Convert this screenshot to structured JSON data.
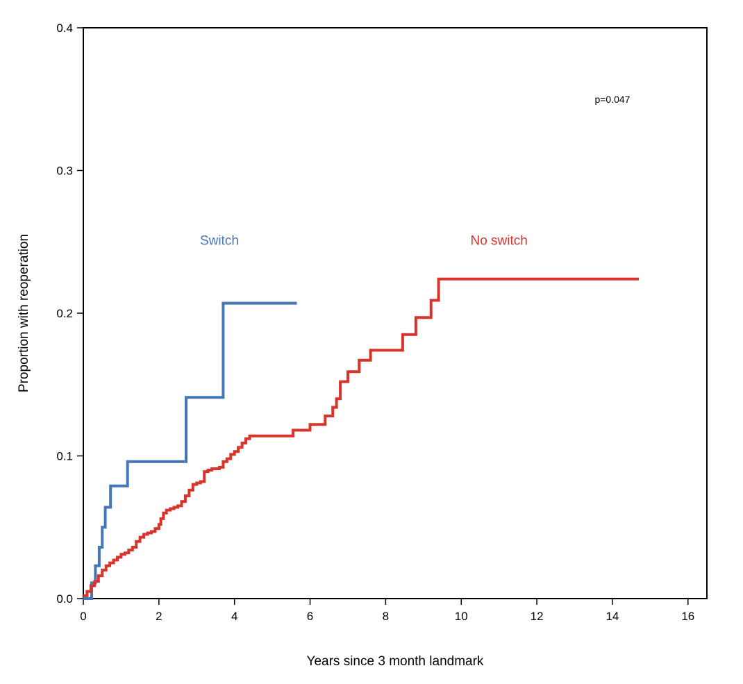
{
  "chart_data": {
    "type": "line",
    "step": true,
    "title": "",
    "xlabel": "Years since 3 month landmark",
    "ylabel": "Proportion with reoperation",
    "xlim": [
      0,
      16.5
    ],
    "ylim": [
      0,
      0.4
    ],
    "xticks": [
      0,
      2,
      4,
      6,
      8,
      10,
      12,
      14,
      16
    ],
    "yticks": [
      0.0,
      0.1,
      0.2,
      0.3,
      0.4
    ],
    "xtick_labels": [
      "0",
      "2",
      "4",
      "6",
      "8",
      "10",
      "12",
      "14",
      "16"
    ],
    "ytick_labels": [
      "0.0",
      "0.1",
      "0.2",
      "0.3",
      "0.4"
    ],
    "grid": false,
    "annotations": [
      {
        "text": "p=0.047",
        "x": 14.0,
        "y": 0.35
      }
    ],
    "series": [
      {
        "name": "Switch",
        "color": "#4477b4",
        "label_at": {
          "x": 3.6,
          "y": 0.248
        },
        "x": [
          0,
          0.22,
          0.22,
          0.32,
          0.32,
          0.42,
          0.42,
          0.5,
          0.5,
          0.58,
          0.58,
          0.62,
          0.62,
          0.72,
          0.72,
          1.17,
          1.17,
          2.72,
          2.72,
          3.7,
          3.7,
          5.65
        ],
        "y": [
          0,
          0,
          0.011,
          0.011,
          0.023,
          0.023,
          0.036,
          0.036,
          0.05,
          0.05,
          0.064,
          0.064,
          0.064,
          0.064,
          0.079,
          0.079,
          0.096,
          0.096,
          0.141,
          0.141,
          0.207,
          0.207
        ]
      },
      {
        "name": "No switch",
        "color": "#d9342c",
        "label_at": {
          "x": 11.0,
          "y": 0.248
        },
        "x": [
          0,
          0.1,
          0.2,
          0.3,
          0.4,
          0.5,
          0.6,
          0.7,
          0.8,
          0.9,
          1.0,
          1.1,
          1.2,
          1.3,
          1.4,
          1.5,
          1.6,
          1.7,
          1.8,
          1.9,
          2.0,
          2.05,
          2.12,
          2.2,
          2.3,
          2.4,
          2.5,
          2.6,
          2.7,
          2.8,
          2.9,
          3.0,
          3.1,
          3.2,
          3.3,
          3.4,
          3.5,
          3.6,
          3.7,
          3.8,
          3.9,
          4.0,
          4.1,
          4.2,
          4.3,
          4.4,
          5.0,
          5.55,
          6.0,
          6.4,
          6.6,
          6.7,
          6.8,
          7.0,
          7.3,
          7.6,
          8.3,
          8.45,
          8.8,
          9.2,
          9.4,
          10.0,
          14.7
        ],
        "y": [
          0.002,
          0.005,
          0.009,
          0.012,
          0.016,
          0.02,
          0.023,
          0.025,
          0.027,
          0.029,
          0.031,
          0.032,
          0.034,
          0.036,
          0.04,
          0.043,
          0.045,
          0.046,
          0.047,
          0.049,
          0.052,
          0.056,
          0.06,
          0.062,
          0.063,
          0.064,
          0.065,
          0.068,
          0.072,
          0.076,
          0.08,
          0.081,
          0.082,
          0.089,
          0.09,
          0.091,
          0.091,
          0.092,
          0.096,
          0.098,
          0.101,
          0.103,
          0.106,
          0.109,
          0.112,
          0.114,
          0.114,
          0.118,
          0.122,
          0.128,
          0.134,
          0.14,
          0.152,
          0.159,
          0.167,
          0.174,
          0.174,
          0.185,
          0.197,
          0.209,
          0.224,
          0.224,
          0.224
        ]
      }
    ]
  }
}
